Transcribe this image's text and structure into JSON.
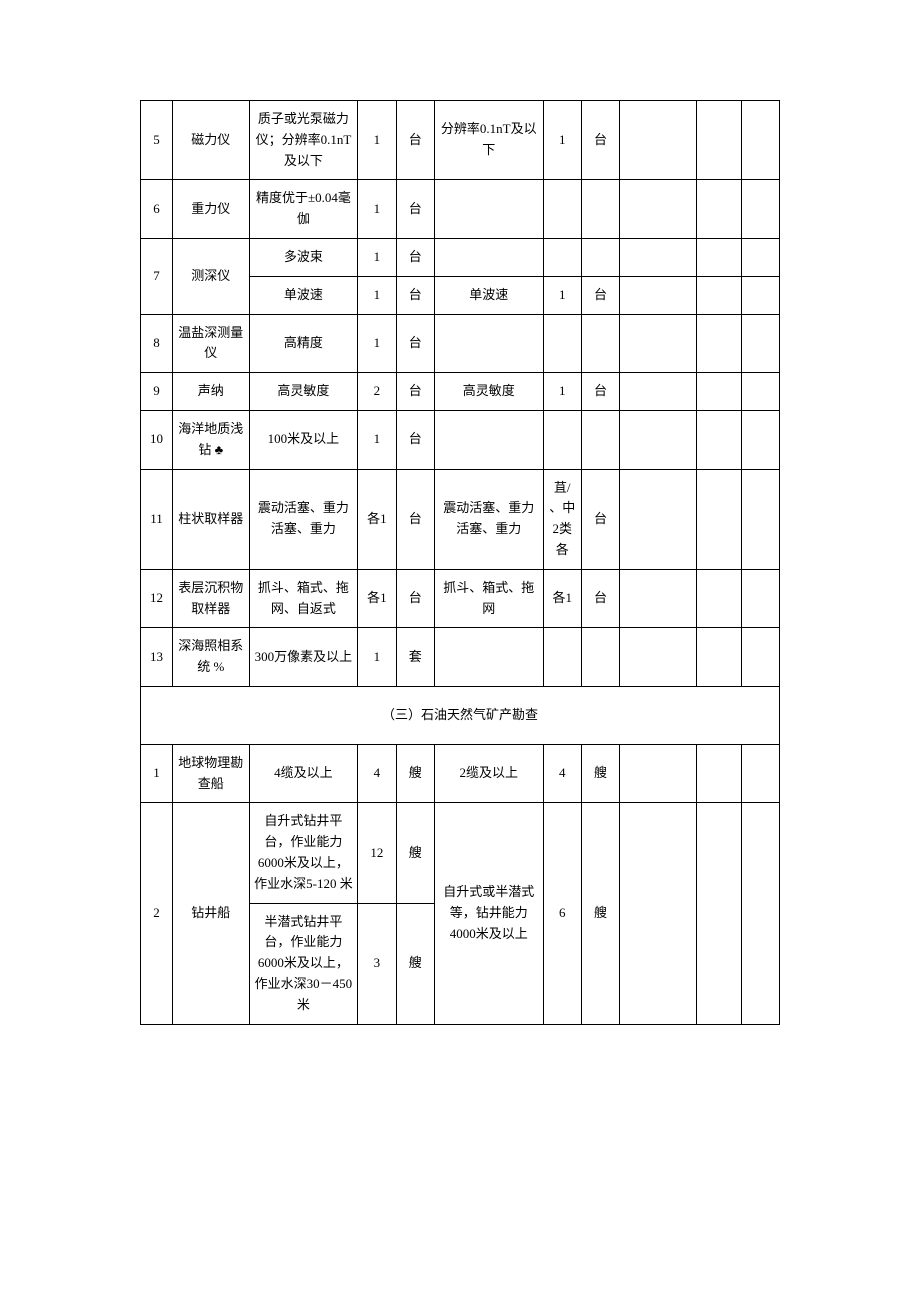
{
  "rows": [
    {
      "n": "5",
      "name": "磁力仪",
      "spec": "质子或光泵磁力仪；分辨率0.1nT及以下",
      "qty": "1",
      "unit": "台",
      "spec2": "分辨率0.1nT及以下",
      "qty2": "1",
      "unit2": "台",
      "c9": "",
      "c10": "",
      "c11": ""
    },
    {
      "n": "6",
      "name": "重力仪",
      "spec": "精度优于±0.04毫伽",
      "qty": "1",
      "unit": "台",
      "spec2": "",
      "qty2": "",
      "unit2": "",
      "c9": "",
      "c10": "",
      "c11": ""
    },
    {
      "n": "7",
      "name": "测深仪",
      "sub": [
        {
          "spec": "多波束",
          "qty": "1",
          "unit": "台",
          "spec2": "",
          "qty2": "",
          "unit2": "",
          "c9": "",
          "c10": "",
          "c11": ""
        },
        {
          "spec": "单波速",
          "qty": "1",
          "unit": "台",
          "spec2": "单波速",
          "qty2": "1",
          "unit2": "台",
          "c9": "",
          "c10": "",
          "c11": ""
        }
      ]
    },
    {
      "n": "8",
      "name": "温盐深测量仪",
      "spec": "高精度",
      "qty": "1",
      "unit": "台",
      "spec2": "",
      "qty2": "",
      "unit2": "",
      "c9": "",
      "c10": "",
      "c11": ""
    },
    {
      "n": "9",
      "name": "声纳",
      "spec": "高灵敏度",
      "qty": "2",
      "unit": "台",
      "spec2": "高灵敏度",
      "qty2": "1",
      "unit2": "台",
      "c9": "",
      "c10": "",
      "c11": ""
    },
    {
      "n": "10",
      "name": "海洋地质浅钻 ♣",
      "spec": "100米及以上",
      "qty": "1",
      "unit": "台",
      "spec2": "",
      "qty2": "",
      "unit2": "",
      "c9": "",
      "c10": "",
      "c11": ""
    },
    {
      "n": "11",
      "name": "柱状取样器",
      "spec": "震动活塞、重力活塞、重力",
      "qty": "各1",
      "unit": "台",
      "spec2": "震动活塞、重力活塞、重力",
      "qty2": "苴/、中2类各",
      "unit2": "台",
      "c9": "",
      "c10": "",
      "c11": ""
    },
    {
      "n": "12",
      "name": "表层沉积物取样器",
      "spec": "抓斗、箱式、拖网、自返式",
      "qty": "各1",
      "unit": "台",
      "spec2": "抓斗、箱式、拖网",
      "qty2": "各1",
      "unit2": "台",
      "c9": "",
      "c10": "",
      "c11": ""
    },
    {
      "n": "13",
      "name": "深海照相系统 %",
      "spec": "300万像素及以上",
      "qty": "1",
      "unit": "套",
      "spec2": "",
      "qty2": "",
      "unit2": "",
      "c9": "",
      "c10": "",
      "c11": ""
    }
  ],
  "section_title": "（三）石油天然气矿产勘查",
  "rows2": [
    {
      "n": "1",
      "name": "地球物理勘查船",
      "spec": "4缆及以上",
      "qty": "4",
      "unit": "艘",
      "spec2": "2缆及以上",
      "qty2": "4",
      "unit2": "艘",
      "c9": "",
      "c10": "",
      "c11": ""
    },
    {
      "n": "2",
      "name": "钻井船",
      "spec2": "自升式或半潜式等，钻井能力4000米及以上",
      "qty2": "6",
      "unit2": "艘",
      "c9": "",
      "c10": "",
      "c11": "",
      "sub": [
        {
          "spec": "自升式钻井平台，作业能力6000米及以上，作业水深5-120 米",
          "qty": "12",
          "unit": "艘"
        },
        {
          "spec": "半潜式钻井平台，作业能力6000米及以上，作业水深30－450 米",
          "qty": "3",
          "unit": "艘"
        }
      ]
    }
  ]
}
